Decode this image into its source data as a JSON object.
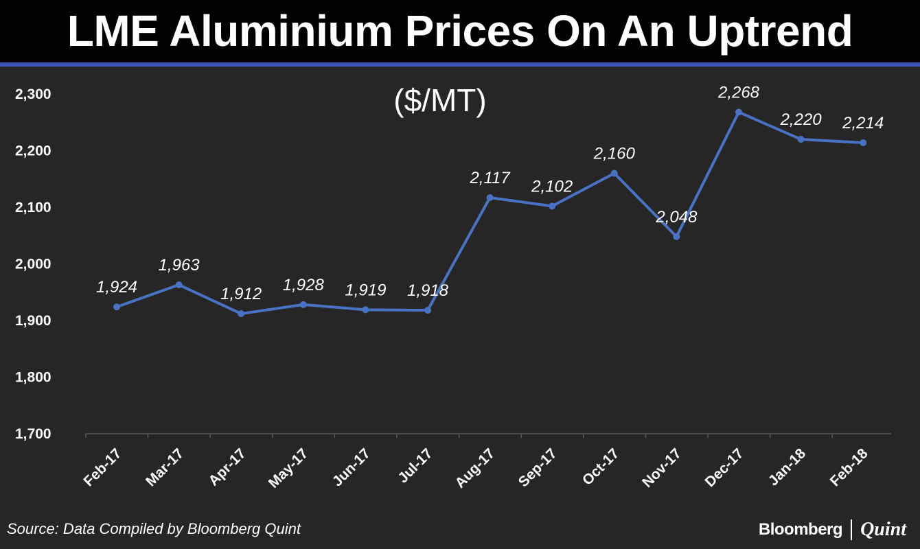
{
  "header": {
    "title": "LME Aluminium Prices On An Uptrend"
  },
  "chart_data": {
    "type": "line",
    "title": "LME Aluminium Prices On An Uptrend",
    "subtitle": "($/MT)",
    "xlabel": "",
    "ylabel": "",
    "categories": [
      "Feb-17",
      "Mar-17",
      "Apr-17",
      "May-17",
      "Jun-17",
      "Jul-17",
      "Aug-17",
      "Sep-17",
      "Oct-17",
      "Nov-17",
      "Dec-17",
      "Jan-18",
      "Feb-18"
    ],
    "values": [
      1924,
      1963,
      1912,
      1928,
      1919,
      1918,
      2117,
      2102,
      2160,
      2048,
      2268,
      2220,
      2214
    ],
    "data_labels": [
      "1,924",
      "1,963",
      "1,912",
      "1,928",
      "1,919",
      "1,918",
      "2,117",
      "2,102",
      "2,160",
      "2,048",
      "2,268",
      "2,220",
      "2,214"
    ],
    "ylim": [
      1700,
      2300
    ],
    "yticks": [
      1700,
      1800,
      1900,
      2000,
      2100,
      2200,
      2300
    ],
    "ytick_labels": [
      "1,700",
      "1,800",
      "1,900",
      "2,000",
      "2,100",
      "2,200",
      "2,300"
    ],
    "grid": false,
    "legend": "none",
    "line_color": "#4a72c4"
  },
  "colors": {
    "background": "#262626",
    "header_bar": "#000000",
    "accent_rule": "#3b58b8",
    "text": "#ffffff"
  },
  "footer": {
    "source": "Source: Data Compiled by Bloomberg Quint",
    "brand_left": "Bloomberg",
    "brand_right": "Quint"
  }
}
